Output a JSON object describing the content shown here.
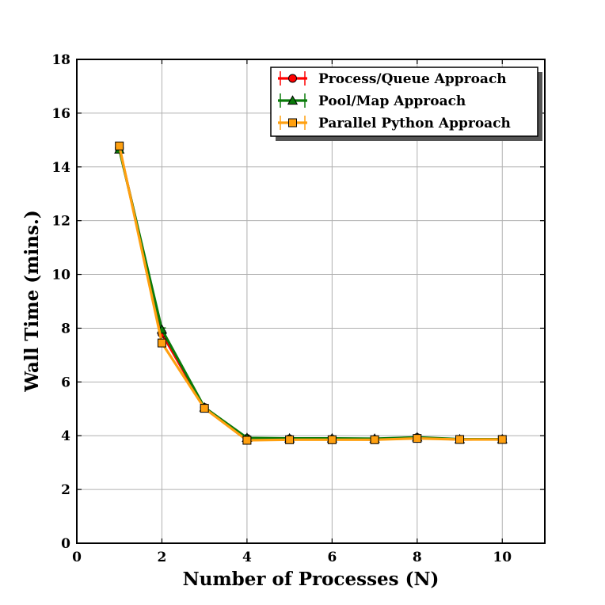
{
  "chart_data": {
    "type": "line",
    "title": "",
    "xlabel": "Number of Processes (N)",
    "ylabel": "Wall Time (mins.)",
    "xlim": [
      0,
      11
    ],
    "ylim": [
      0,
      18
    ],
    "xticks": [
      0,
      2,
      4,
      6,
      8,
      10
    ],
    "yticks": [
      0,
      2,
      4,
      6,
      8,
      10,
      12,
      14,
      16,
      18
    ],
    "grid": true,
    "legend_position": "top-right",
    "x": [
      1,
      2,
      3,
      4,
      5,
      6,
      7,
      8,
      9,
      10
    ],
    "series": [
      {
        "name": "Process/Queue Approach",
        "color": "#ff0000",
        "marker": "circle",
        "values": [
          14.7,
          7.8,
          5.05,
          3.9,
          3.88,
          3.87,
          3.86,
          3.93,
          3.86,
          3.87
        ]
      },
      {
        "name": "Pool/Map Approach",
        "color": "#0a7a0a",
        "marker": "triangle",
        "values": [
          14.65,
          7.95,
          5.05,
          3.92,
          3.9,
          3.9,
          3.89,
          3.94,
          3.87,
          3.87
        ]
      },
      {
        "name": "Parallel Python Approach",
        "color": "#ffa010",
        "marker": "square",
        "values": [
          14.78,
          7.45,
          5.02,
          3.83,
          3.85,
          3.85,
          3.85,
          3.9,
          3.86,
          3.86
        ]
      }
    ]
  }
}
